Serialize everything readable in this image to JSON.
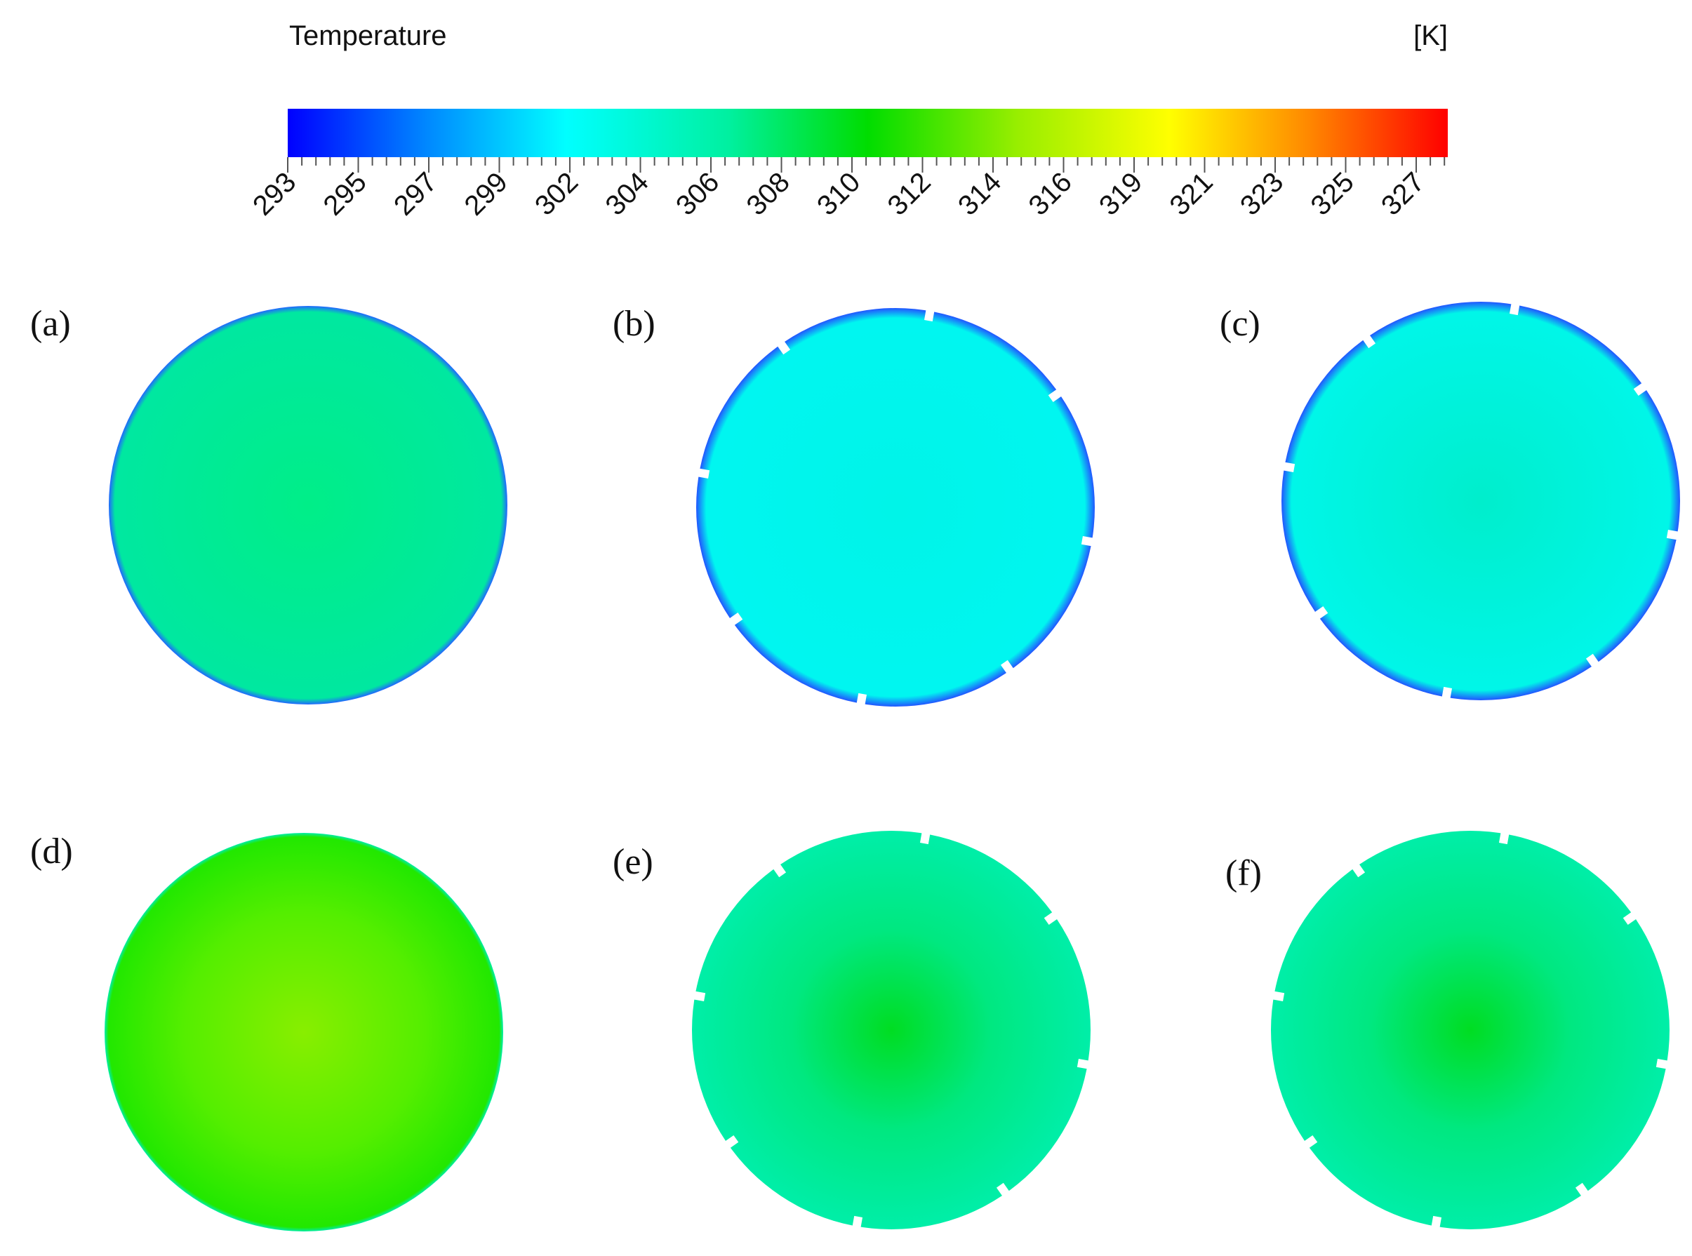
{
  "legend": {
    "title": "Temperature",
    "unit": "[K]",
    "ticks": [
      293,
      295,
      297,
      299,
      302,
      304,
      306,
      308,
      310,
      312,
      314,
      316,
      319,
      321,
      323,
      325,
      327
    ]
  },
  "panels": [
    {
      "label": "(a)"
    },
    {
      "label": "(b)"
    },
    {
      "label": "(c)"
    },
    {
      "label": "(d)"
    },
    {
      "label": "(e)"
    },
    {
      "label": "(f)"
    }
  ]
}
